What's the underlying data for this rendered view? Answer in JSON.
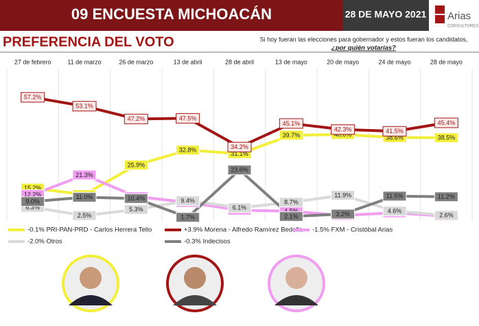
{
  "header": {
    "title": "09 ENCUESTA MICHOACÁN",
    "date": "28 DE MAYO 2021",
    "logo": "Arias",
    "logo_sub": "CONSULTORES",
    "section": "PREFERENCIA DEL VOTO",
    "question_1": "Si hoy fueran las elecciones para gobernador y estos fueran los candidatos,",
    "question_2": "¿por quién votarías?"
  },
  "chart_data": {
    "type": "line",
    "categories": [
      "27 de febrero",
      "11 de marzo",
      "26 de marzo",
      "13 de abril",
      "28 de abril",
      "13 de mayo",
      "20 de mayo",
      "24 de mayo",
      "28 de mayo"
    ],
    "series": [
      {
        "name": "-0.1% PRI-PAN-PRD - Carlos Herrera Tello",
        "color": "#f2ee3a",
        "values": [
          15.2,
          12.2,
          25.9,
          32.8,
          31.1,
          39.7,
          40.0,
          38.6,
          38.5
        ],
        "value_labels": [
          "15.2%",
          "12.2%",
          "25.9%",
          "32.8%",
          "31.1%",
          "39.7%",
          "40.0%",
          "38.6%",
          "38.5%"
        ]
      },
      {
        "name": "+3.9% Morena - Alfredo Ramírez Bedolla",
        "color": "#a31515",
        "values": [
          57.2,
          53.1,
          47.2,
          47.5,
          34.2,
          45.1,
          42.3,
          41.5,
          45.4
        ],
        "value_labels": [
          "57.2%",
          "53.1%",
          "47.2%",
          "47.5%",
          "34.2%",
          "45.1%",
          "42.3%",
          "41.5%",
          "45.4%"
        ]
      },
      {
        "name": "-1.5% FXM - Cristóbal Arias",
        "color": "#f09cf0",
        "values": [
          12.2,
          21.3,
          11.3,
          8.6,
          5.0,
          4.5,
          2.6,
          3.8,
          2.2
        ],
        "value_labels": [
          "12.2%",
          "21.3%",
          "11.3%",
          "8.6%",
          "5.0%",
          "4.5%",
          "2.6%",
          "3.8%",
          "2.2%"
        ]
      },
      {
        "name": "-2.0% Otros",
        "color": "#d9d9d9",
        "values": [
          6.3,
          2.5,
          5.3,
          9.4,
          6.1,
          8.7,
          11.9,
          4.6,
          2.6
        ],
        "value_labels": [
          "6.3%",
          "2.5%",
          "5.3%",
          "9.4%",
          "6.1%",
          "8.7%",
          "11.9%",
          "4.6%",
          "2.6%"
        ]
      },
      {
        "name": "-0.3% Indecisos",
        "color": "#7f7f7f",
        "values": [
          9.0,
          11.0,
          10.4,
          1.7,
          23.6,
          2.1,
          3.2,
          11.5,
          11.2
        ],
        "value_labels": [
          "9.0%",
          "11.0%",
          "10.4%",
          "1.7%",
          "23.6%",
          "2.1%",
          "3.2%",
          "11.5%",
          "11.2%"
        ]
      }
    ]
  }
}
